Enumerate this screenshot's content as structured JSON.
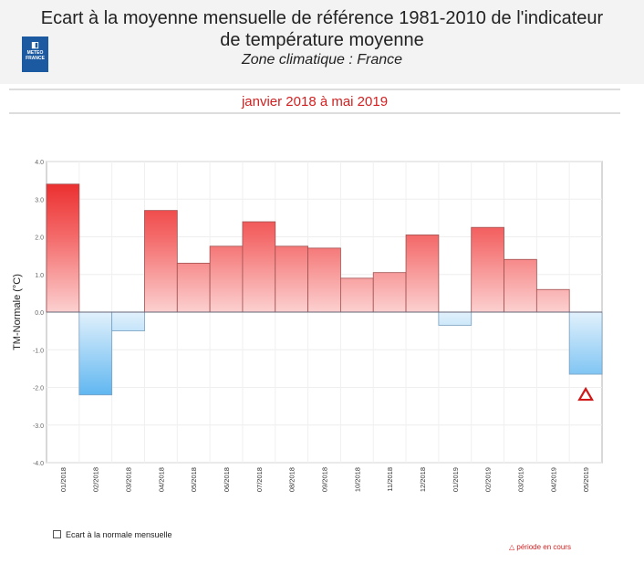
{
  "header": {
    "title_line1": "Ecart à la moyenne mensuelle de référence 1981-2010 de l'indicateur",
    "title_line2": "de température moyenne",
    "subtitle": "Zone climatique : France",
    "logo_text": "METEO FRANCE",
    "period": "janvier 2018 à mai 2019"
  },
  "chart_data": {
    "type": "bar",
    "title": "Ecart à la moyenne mensuelle de référence 1981-2010 de l'indicateur de température moyenne",
    "xlabel": "",
    "ylabel": "TM-Normale (°C)",
    "ylim": [
      -4,
      4
    ],
    "yticks": [
      "4.0",
      "3.0",
      "2.0",
      "1.0",
      "0.0",
      "-1.0",
      "-2.0",
      "-3.0",
      "-4.0"
    ],
    "categories": [
      "01/2018",
      "02/2018",
      "03/2018",
      "04/2018",
      "05/2018",
      "06/2018",
      "07/2018",
      "08/2018",
      "09/2018",
      "10/2018",
      "11/2018",
      "12/2018",
      "01/2019",
      "02/2019",
      "03/2019",
      "04/2019",
      "05/2019"
    ],
    "values": [
      3.4,
      -2.2,
      -0.5,
      2.7,
      1.3,
      1.75,
      2.4,
      1.75,
      1.7,
      0.9,
      1.05,
      2.05,
      -0.35,
      2.25,
      1.4,
      0.6,
      -1.65
    ],
    "current_period_index": 16,
    "grid": true,
    "legend": [
      {
        "label": "Ecart à la normale mensuelle",
        "position": "bottom-left"
      },
      {
        "label": "période en cours",
        "position": "bottom-right"
      }
    ],
    "colors": {
      "positive": "#e82020",
      "negative": "#5ab4f0",
      "marker": "#d01818"
    }
  }
}
